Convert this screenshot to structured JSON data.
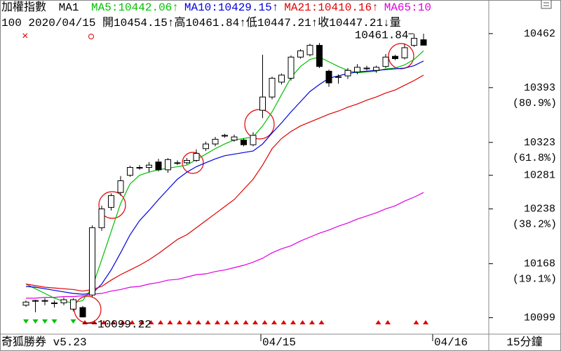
{
  "chart_data": {
    "type": "candlestick",
    "header": {
      "title": "加權指數",
      "ma_label": "MA1",
      "quote": "100 2020/04/15 開10454.15↑高10461.84↑低10447.21↑收10447.21↓量"
    },
    "ylim": [
      10078,
      10487
    ],
    "yticks": [
      10462,
      10393,
      10323,
      10281,
      10238,
      10168,
      10099
    ],
    "fib_labels": [
      "(80.9%)",
      "(61.8%)",
      "(38.2%)",
      "(19.1%)"
    ],
    "annotations": [
      "10461.84",
      "10099.22"
    ],
    "footer": {
      "app": "奇狐勝券 v5.23",
      "dates": [
        "04/15",
        "04/16"
      ],
      "period": "15分鐘"
    },
    "up_color": "#ffffff",
    "down_color": "#000000",
    "ohlc": [
      [
        10115,
        10121,
        10113,
        10119
      ],
      [
        10120,
        10122,
        10106,
        10121
      ],
      [
        10120,
        10124,
        10115,
        10121
      ],
      [
        10117,
        10121,
        10112,
        10118
      ],
      [
        10118,
        10125,
        10115,
        10122
      ],
      [
        10110,
        10124,
        10107,
        10122
      ],
      [
        10112,
        10114,
        10099.22,
        10100
      ],
      [
        10128,
        10217,
        10126,
        10214
      ],
      [
        10214,
        10242,
        10210,
        10238
      ],
      [
        10240,
        10258,
        10236,
        10255
      ],
      [
        10259,
        10280,
        10255,
        10274
      ],
      [
        10281,
        10293,
        10279,
        10291
      ],
      [
        10291,
        10294,
        10288,
        10291
      ],
      [
        10291,
        10298,
        10285,
        10294
      ],
      [
        10298,
        10302,
        10286,
        10288
      ],
      [
        10288,
        10303,
        10284,
        10301
      ],
      [
        10297,
        10300,
        10294,
        10297
      ],
      [
        10297,
        10303,
        10295,
        10300
      ],
      [
        10300,
        10314,
        10298,
        10309
      ],
      [
        10315,
        10324,
        10312,
        10321
      ],
      [
        10321,
        10330,
        10318,
        10327
      ],
      [
        10331,
        10334,
        10329,
        10332
      ],
      [
        10326,
        10333,
        10324,
        10330
      ],
      [
        10326,
        10328,
        10318,
        10320
      ],
      [
        10320,
        10336,
        10318,
        10332
      ],
      [
        10364,
        10435,
        10354,
        10381
      ],
      [
        10381,
        10407,
        10378,
        10405
      ],
      [
        10400,
        10411,
        10397,
        10409
      ],
      [
        10405,
        10434,
        10402,
        10432
      ],
      [
        10432,
        10442,
        10430,
        10440
      ],
      [
        10435,
        10449,
        10433,
        10447
      ],
      [
        10447,
        10450,
        10418,
        10420
      ],
      [
        10414,
        10416,
        10394,
        10399
      ],
      [
        10406,
        10410,
        10398,
        10407
      ],
      [
        10408,
        10418,
        10404,
        10415
      ],
      [
        10413,
        10423,
        10410,
        10419
      ],
      [
        10417,
        10421,
        10415,
        10418
      ],
      [
        10415,
        10421,
        10412,
        10419
      ],
      [
        10420,
        10436,
        10418,
        10432
      ],
      [
        10433,
        10435,
        10428,
        10430
      ],
      [
        10431,
        10449,
        10429,
        10444
      ],
      [
        10447,
        10461.84,
        10445,
        10456
      ],
      [
        10454.15,
        10461.84,
        10447.21,
        10447.21
      ]
    ],
    "series": [
      {
        "name": "MA5:10442.06↑",
        "color": "#00c000",
        "values": [
          10142,
          10136,
          10130,
          10124,
          10120,
          10118,
          10121,
          10138,
          10173,
          10209,
          10245,
          10270,
          10281,
          10285,
          10288,
          10290,
          10292,
          10294,
          10301,
          10308,
          10315,
          10321,
          10326,
          10328,
          10330,
          10344,
          10362,
          10384,
          10406,
          10420,
          10429,
          10432,
          10426,
          10420,
          10415,
          10412,
          10413,
          10414,
          10417,
          10418,
          10422,
          10429,
          10440
        ]
      },
      {
        "name": "MA10:10429.15↑",
        "color": "#0000e0",
        "values": [
          10139,
          10138,
          10136,
          10134,
          10132,
          10130,
          10129,
          10130,
          10142,
          10160,
          10182,
          10205,
          10223,
          10236,
          10250,
          10263,
          10276,
          10285,
          10292,
          10297,
          10302,
          10306,
          10308,
          10310,
          10312,
          10321,
          10335,
          10348,
          10362,
          10375,
          10388,
          10397,
          10405,
          10408,
          10411,
          10413,
          10414,
          10415,
          10416,
          10417,
          10418,
          10421,
          10427
        ]
      },
      {
        "name": "MA21:10410.16↑",
        "color": "#e00000",
        "values": [
          10142,
          10140,
          10138,
          10137,
          10136,
          10135,
          10133,
          10135,
          10139,
          10147,
          10154,
          10160,
          10166,
          10173,
          10181,
          10190,
          10199,
          10205,
          10214,
          10223,
          10232,
          10241,
          10250,
          10263,
          10276,
          10294,
          10315,
          10328,
          10337,
          10344,
          10349,
          10354,
          10359,
          10363,
          10368,
          10372,
          10377,
          10381,
          10386,
          10390,
          10396,
          10402,
          10409
        ]
      },
      {
        "name": "MA65:10",
        "color": "#e000e0",
        "values": [
          10124,
          10124,
          10125,
          10125,
          10126,
          10126,
          10127,
          10129,
          10130,
          10133,
          10135,
          10138,
          10139,
          10142,
          10144,
          10147,
          10148,
          10151,
          10154,
          10155,
          10158,
          10160,
          10163,
          10166,
          10170,
          10175,
          10182,
          10187,
          10191,
          10197,
          10202,
          10207,
          10211,
          10216,
          10220,
          10225,
          10229,
          10233,
          10238,
          10242,
          10248,
          10253,
          10259
        ]
      }
    ]
  }
}
